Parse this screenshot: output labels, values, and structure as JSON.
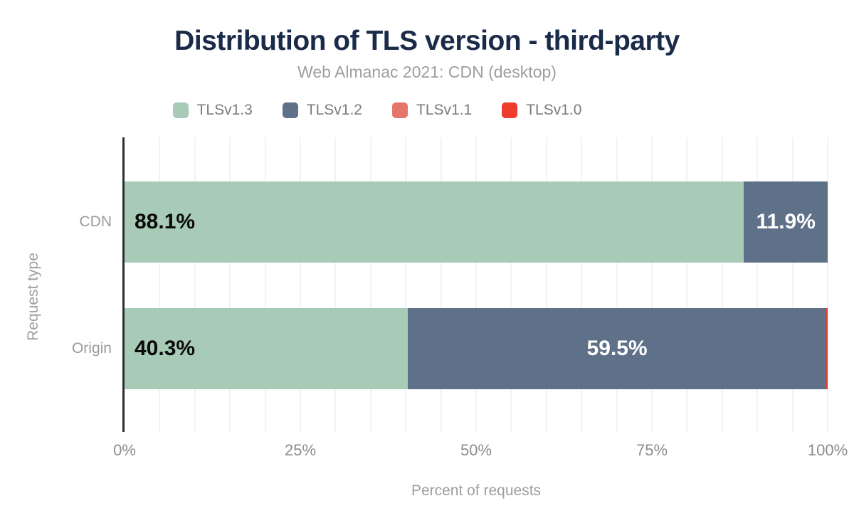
{
  "header": {
    "title": "Distribution of TLS version - third-party",
    "subtitle": "Web Almanac 2021: CDN (desktop)"
  },
  "colors": {
    "title_text": "#1a2b49",
    "muted_text": "#9e9e9e",
    "legend_text": "#7b7b7b",
    "tick_text": "#8c8c8c",
    "axis_line": "#2f2f2f",
    "gridline": "#f2f2f2",
    "tlsv13": "#a8cbb7",
    "tlsv12": "#5f7089",
    "tlsv11": "#e5766a",
    "tlsv10": "#ef3c2d",
    "label_on_light": "#0a0a0a",
    "label_on_dark": "#ffffff"
  },
  "legend": [
    {
      "label": "TLSv1.3",
      "color": "#a8cbb7"
    },
    {
      "label": "TLSv1.2",
      "color": "#5f7089"
    },
    {
      "label": "TLSv1.1",
      "color": "#e5766a"
    },
    {
      "label": "TLSv1.0",
      "color": "#ef3c2d"
    }
  ],
  "chart_data": {
    "type": "bar",
    "variant": "horizontal-stacked",
    "title": "Distribution of TLS version - third-party",
    "subtitle": "Web Almanac 2021: CDN (desktop)",
    "categories": [
      "CDN",
      "Origin"
    ],
    "series": [
      {
        "name": "TLSv1.3",
        "color": "#a8cbb7",
        "values": [
          88.1,
          40.3
        ]
      },
      {
        "name": "TLSv1.2",
        "color": "#5f7089",
        "values": [
          11.9,
          59.5
        ]
      },
      {
        "name": "TLSv1.1",
        "color": "#e5766a",
        "values": [
          0.0,
          0.0
        ]
      },
      {
        "name": "TLSv1.0",
        "color": "#ef3c2d",
        "values": [
          0.0,
          0.2
        ]
      }
    ],
    "data_labels": [
      [
        "88.1%",
        "11.9%"
      ],
      [
        "40.3%",
        "59.5%"
      ]
    ],
    "xlabel": "Percent of requests",
    "ylabel": "Request type",
    "x_ticks": [
      "0%",
      "25%",
      "50%",
      "75%",
      "100%"
    ],
    "x_tick_values": [
      0,
      25,
      50,
      75,
      100
    ],
    "xlim": [
      0,
      100
    ],
    "grid": {
      "vertical_minor_step_pct": 5,
      "horizontal": false
    },
    "legend_position": "top"
  }
}
